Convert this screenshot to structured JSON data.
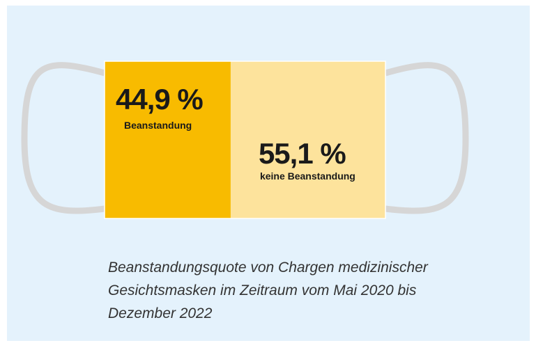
{
  "chart_data": {
    "type": "stacked-bar",
    "title": "Beanstandungsquote von Chargen medizinischer Gesichtsmasken im Zeitraum vom Mai 2020 bis Dezember 2022",
    "series": [
      {
        "name": "Beanstandung",
        "color": "#f8bb00",
        "values": [
          44.9
        ],
        "value_labels": [
          "44,9 %"
        ]
      },
      {
        "name": "keine Beanstandung",
        "color": "#fde39c",
        "values": [
          55.1
        ],
        "value_labels": [
          "55,1 %"
        ]
      }
    ]
  }
}
